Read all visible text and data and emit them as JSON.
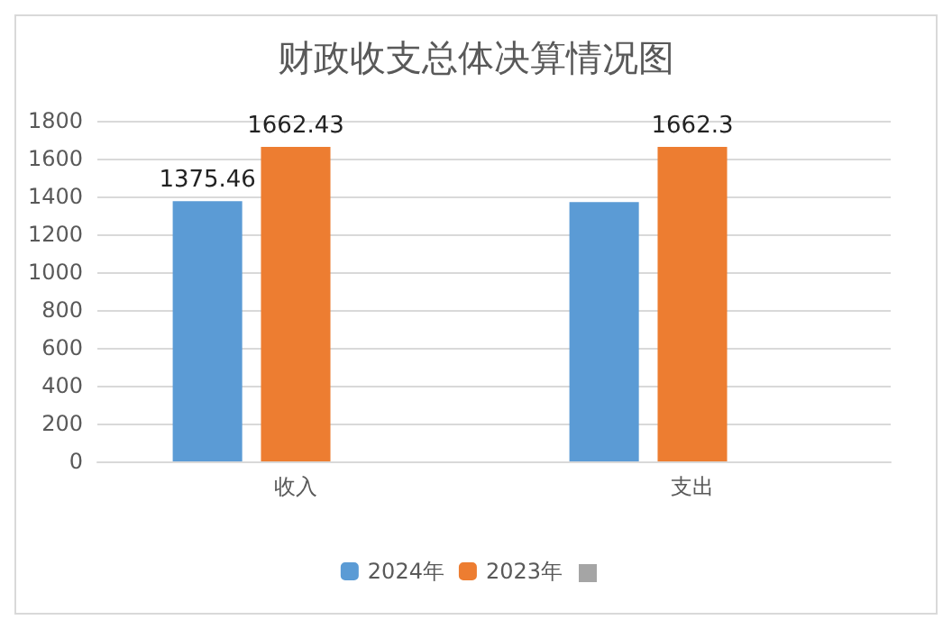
{
  "chart_data": {
    "type": "bar",
    "title": "财政收支总体决算情况图",
    "categories": [
      "收入",
      "支出"
    ],
    "series": [
      {
        "name": "2024年",
        "color": "#5b9bd5",
        "values": [
          1375.46,
          1370
        ],
        "value_labels": [
          "1375.46",
          null
        ]
      },
      {
        "name": "2023年",
        "color": "#ed7d31",
        "values": [
          1662.43,
          1662.3
        ],
        "value_labels": [
          "1662.43",
          "1662.3"
        ]
      },
      {
        "color": "#a5a5a5",
        "values": [
          null,
          null
        ]
      }
    ],
    "ylim": [
      0,
      1800
    ],
    "yticks": [
      0,
      200,
      400,
      600,
      800,
      1000,
      1200,
      1400,
      1600,
      1800
    ],
    "grid": "y",
    "legend": "bottom"
  }
}
